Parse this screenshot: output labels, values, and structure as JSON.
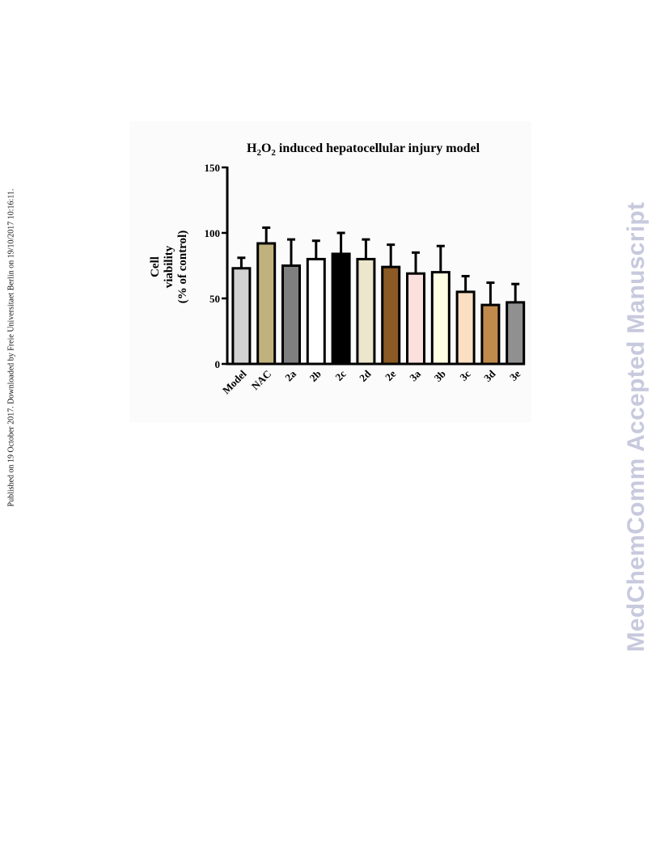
{
  "side_note": "Published on 19 October 2017. Downloaded by Freie Universitaet Berlin on 19/10/2017 10:16:11.",
  "watermark": "MedChemComm Accepted Manuscript",
  "chart_data": {
    "type": "bar",
    "title_parts": [
      "H",
      "2",
      "O",
      "2",
      " induced hepatocellular injury model"
    ],
    "ylabel_lines": [
      "Cell",
      "viability",
      "(% of control)"
    ],
    "xlabel": "",
    "ylim": [
      0,
      150
    ],
    "yticks": [
      0,
      50,
      100,
      150
    ],
    "grid": false,
    "error_bars": "upper",
    "categories": [
      "Model",
      "NAC",
      "2a",
      "2b",
      "2c",
      "2d",
      "2e",
      "3a",
      "3b",
      "3c",
      "3d",
      "3e"
    ],
    "values": [
      73,
      92,
      75,
      80,
      84,
      80,
      74,
      69,
      70,
      55,
      45,
      47
    ],
    "errors": [
      8,
      12,
      20,
      14,
      16,
      15,
      17,
      16,
      20,
      12,
      17,
      14
    ],
    "colors": [
      "#d2d2d2",
      "#bfb27d",
      "#7f7f7f",
      "#ffffff",
      "#000000",
      "#ece6cd",
      "#8b5a25",
      "#fbe0de",
      "#fffde2",
      "#fbdfc2",
      "#bf8a4c",
      "#909090"
    ]
  }
}
